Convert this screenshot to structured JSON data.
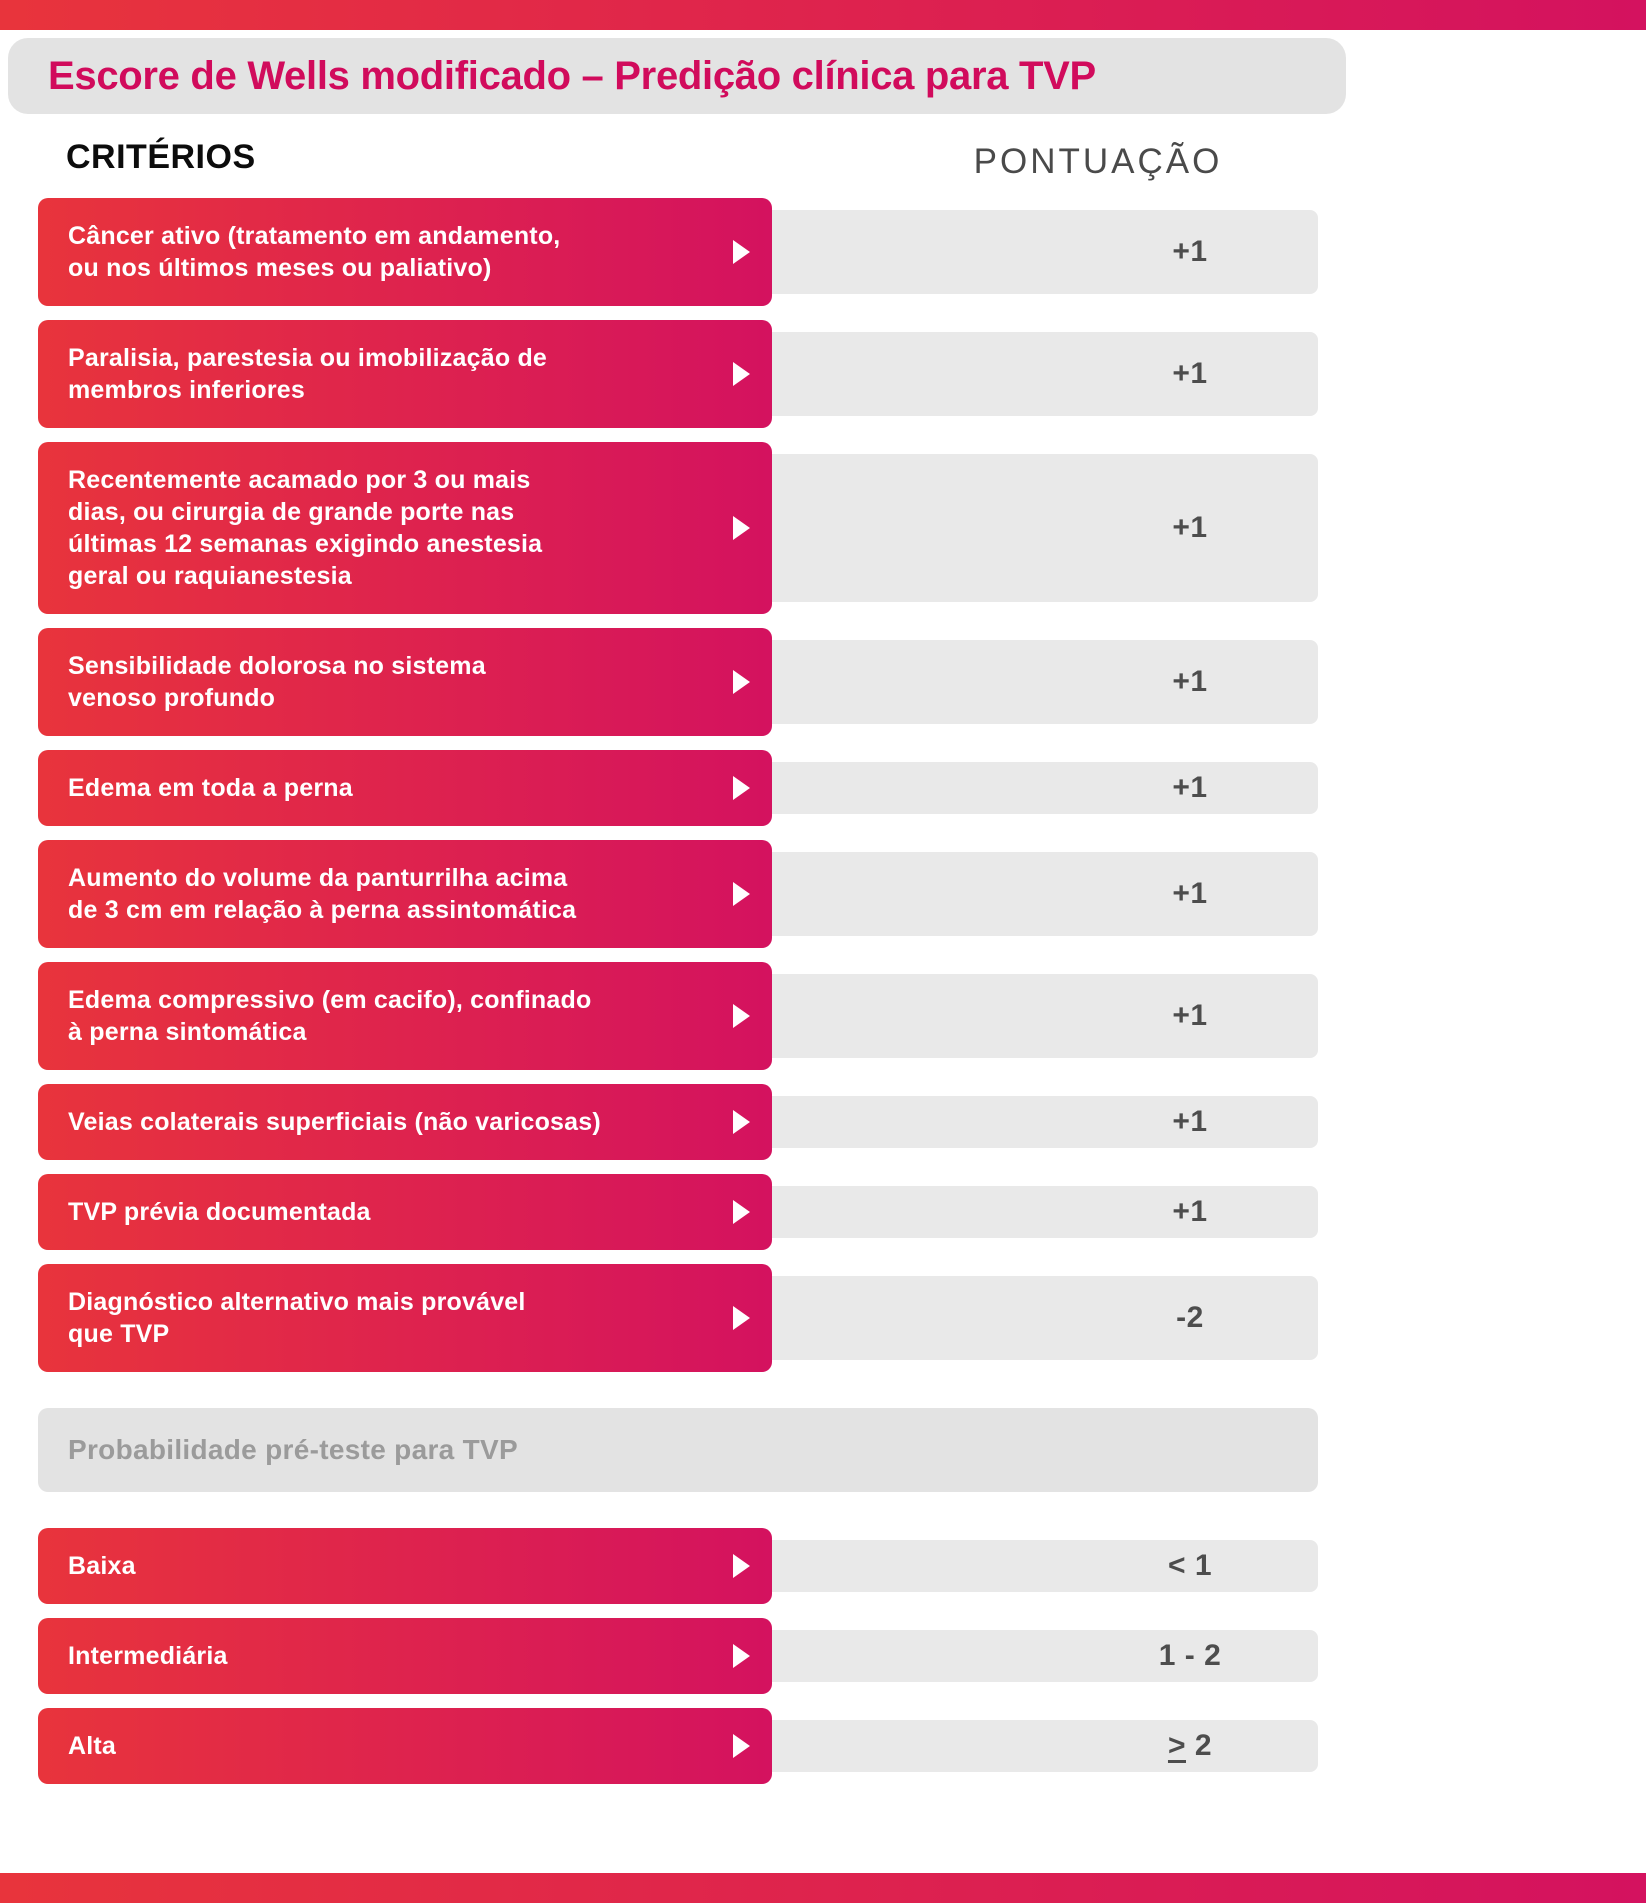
{
  "title": "Escore de Wells modificado – Predição clínica para TVP",
  "columns": {
    "criteria": "CRITÉRIOS",
    "score": "PONTUAÇÃO"
  },
  "criteria_rows": [
    {
      "label": "Câncer ativo (tratamento em andamento,\nou nos últimos meses ou paliativo)",
      "score": "+1"
    },
    {
      "label": "Paralisia, parestesia ou imobilização de\nmembros inferiores",
      "score": "+1"
    },
    {
      "label": "Recentemente acamado por 3 ou mais\ndias, ou cirurgia de grande porte nas\núltimas 12 semanas exigindo anestesia\ngeral ou raquianestesia",
      "score": "+1"
    },
    {
      "label": "Sensibilidade dolorosa no sistema\nvenoso profundo",
      "score": "+1"
    },
    {
      "label": "Edema em toda a perna",
      "score": "+1"
    },
    {
      "label": "Aumento do volume da panturrilha acima\nde 3 cm em relação à perna assintomática",
      "score": "+1"
    },
    {
      "label": "Edema compressivo (em cacifo), confinado\nà perna sintomática",
      "score": "+1"
    },
    {
      "label": "Veias colaterais superficiais (não varicosas)",
      "score": "+1"
    },
    {
      "label": "TVP prévia documentada",
      "score": "+1"
    },
    {
      "label": "Diagnóstico alternativo mais provável\nque TVP",
      "score": "-2"
    }
  ],
  "section_header": "Probabilidade pré-teste para TVP",
  "probability_rows": [
    {
      "label": "Baixa",
      "score": "< 1"
    },
    {
      "label": "Intermediária",
      "score": "1 - 2"
    },
    {
      "label": "Alta",
      "score_sign": ">",
      "score": " 2"
    }
  ],
  "colors": {
    "accent_red": "#E8343C",
    "accent_pink": "#D4125F",
    "title_text": "#D10B5C",
    "header_band_bg": "#E3E3E3",
    "row_track_bg": "#E9E9E9",
    "score_text": "#4D4D4D",
    "section_text": "#9B9B9B"
  }
}
